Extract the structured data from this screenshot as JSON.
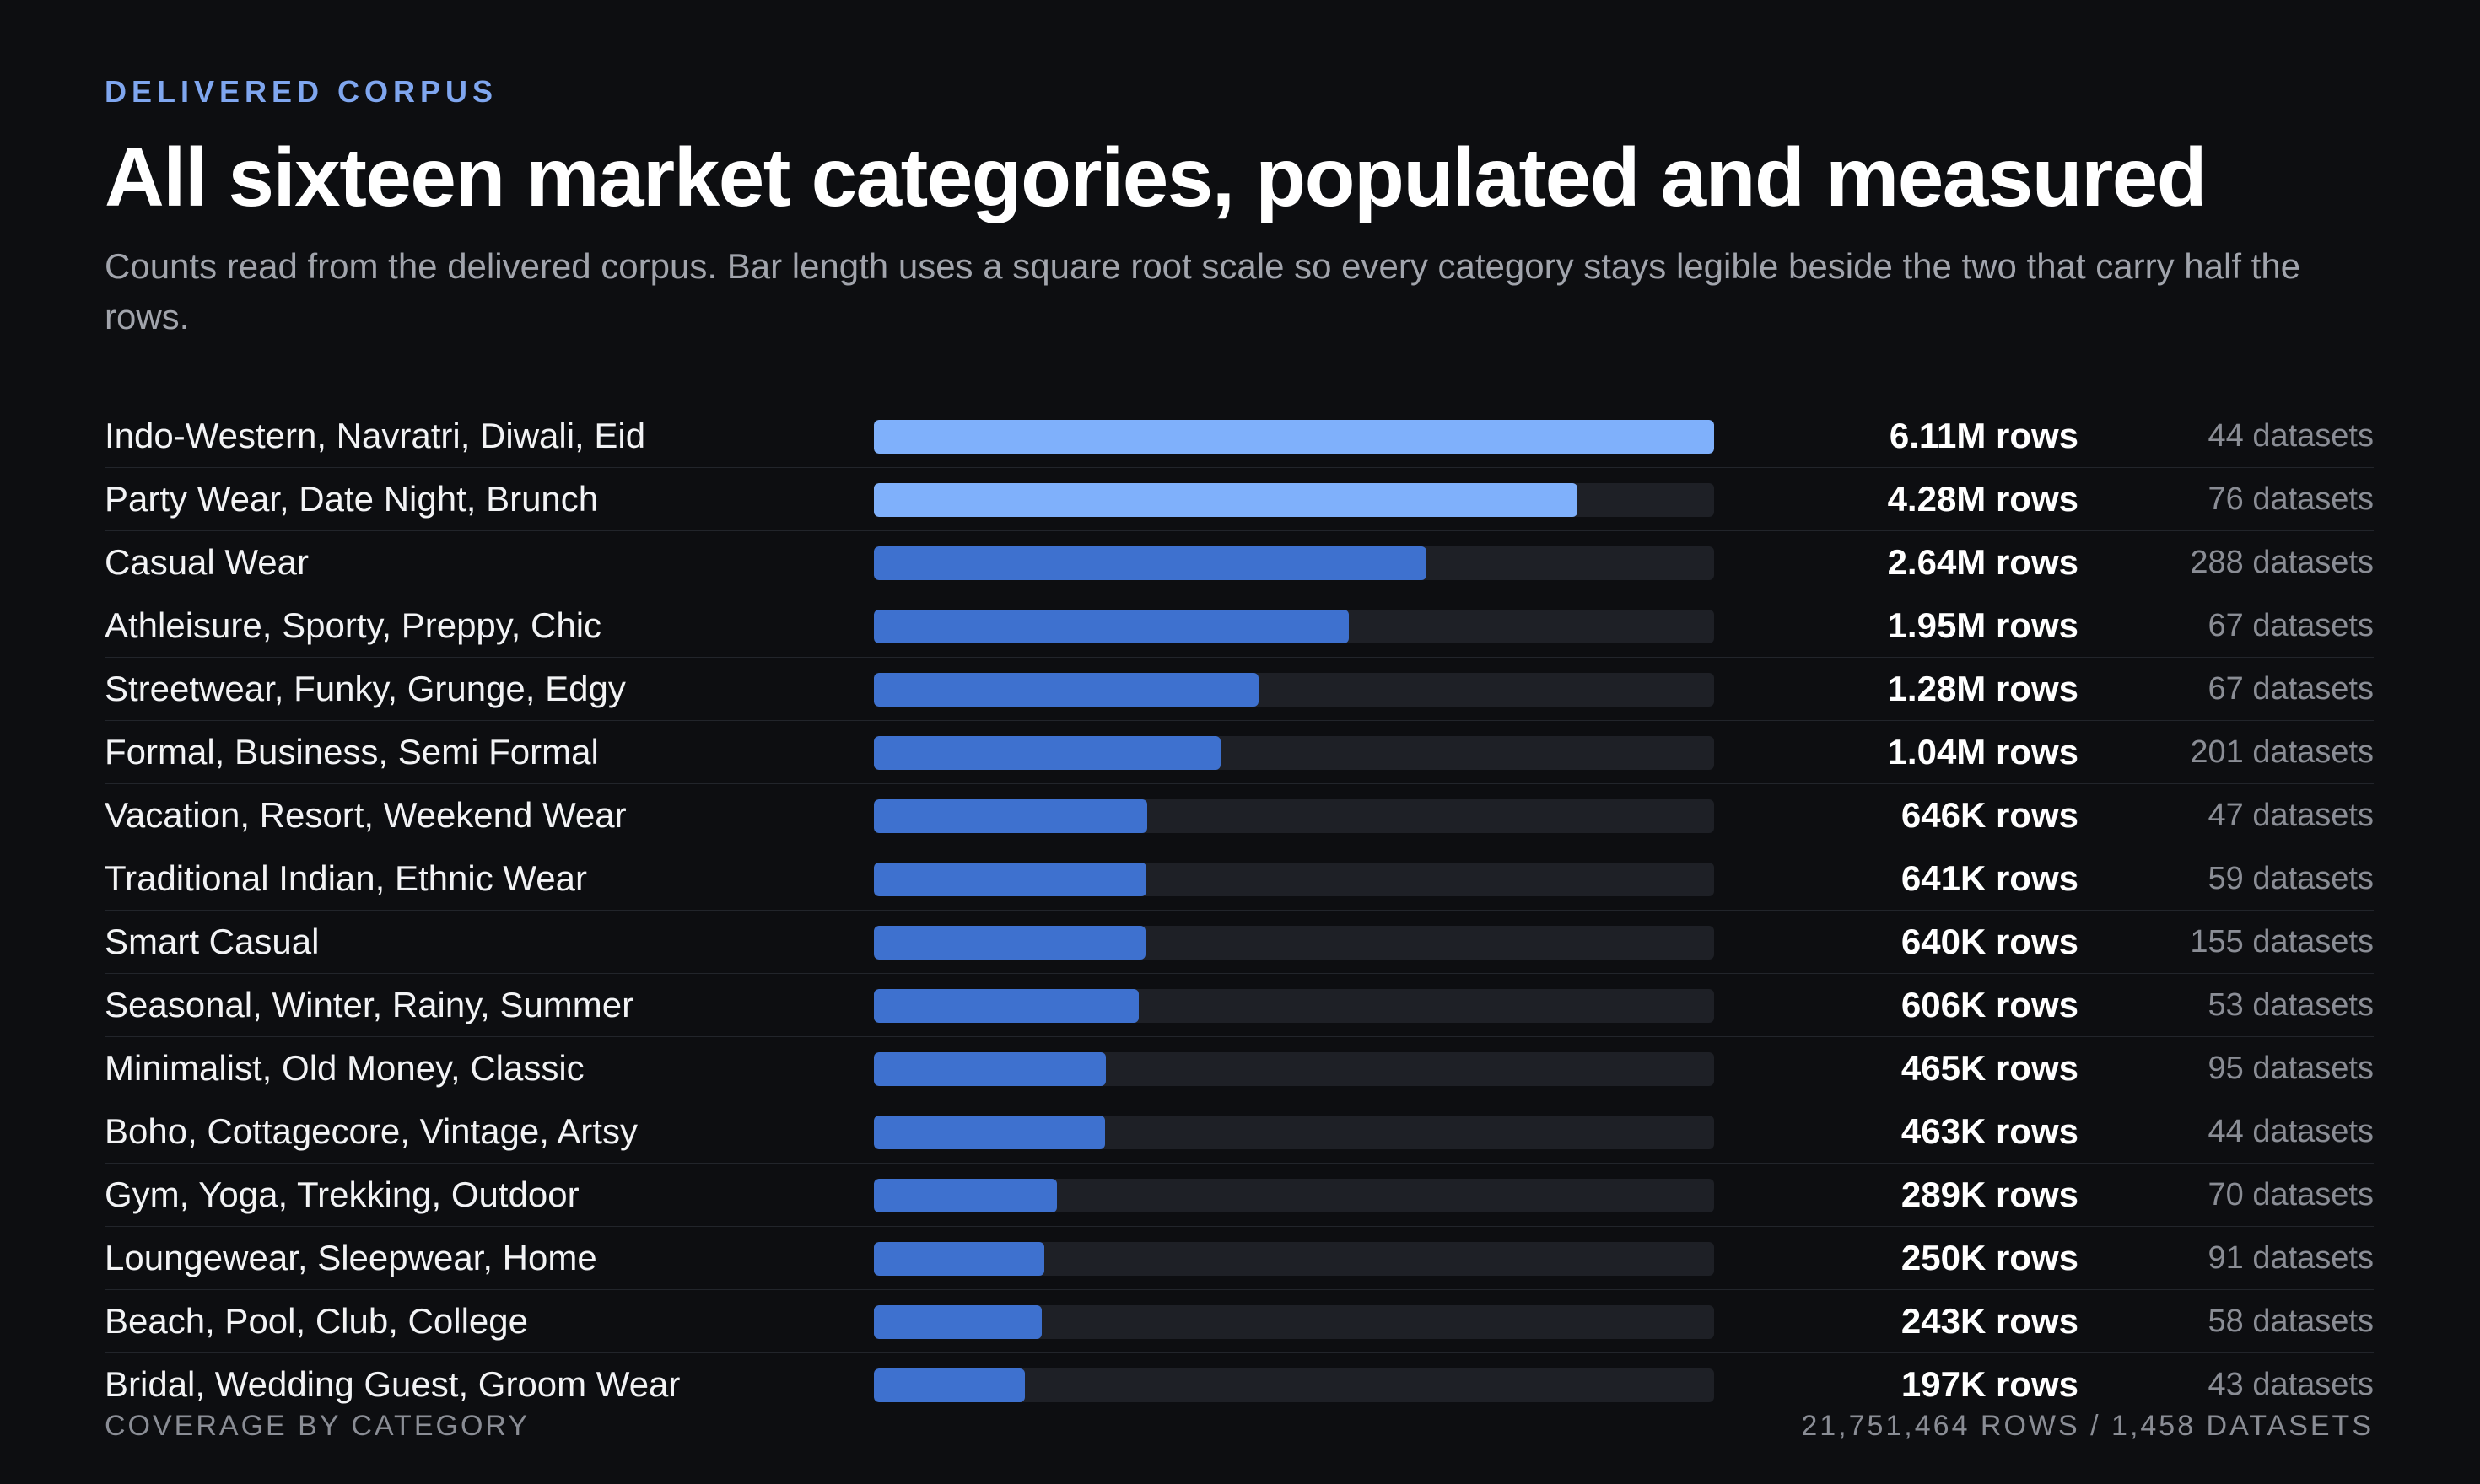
{
  "header": {
    "eyebrow": "DELIVERED CORPUS",
    "title": "All sixteen market categories, populated and measured",
    "subtitle": "Counts read from the delivered corpus. Bar length uses a square root scale so every category stays legible beside the two that carry half the rows."
  },
  "footer": {
    "left": "COVERAGE BY CATEGORY",
    "right": "21,751,464 ROWS / 1,458 DATASETS"
  },
  "colors": {
    "accent_light": "#7fb0fb",
    "accent": "#3e71cf",
    "track": "#1e2026",
    "background": "#0d0e11"
  },
  "chart_data": {
    "type": "bar",
    "orientation": "horizontal",
    "scale": "sqrt",
    "xlim": [
      0,
      6110000
    ],
    "grid": false,
    "categories": [
      "Indo-Western, Navratri, Diwali, Eid",
      "Party Wear, Date Night, Brunch",
      "Casual Wear",
      "Athleisure, Sporty, Preppy, Chic",
      "Streetwear, Funky, Grunge, Edgy",
      "Formal, Business, Semi Formal",
      "Vacation, Resort, Weekend Wear",
      "Traditional Indian, Ethnic Wear",
      "Smart Casual",
      "Seasonal, Winter, Rainy, Summer",
      "Minimalist, Old Money, Classic",
      "Boho, Cottagecore, Vintage, Artsy",
      "Gym, Yoga, Trekking, Outdoor",
      "Loungewear, Sleepwear, Home",
      "Beach, Pool, Club, College",
      "Bridal, Wedding Guest, Groom Wear"
    ],
    "values": [
      6110000,
      4280000,
      2640000,
      1950000,
      1280000,
      1040000,
      646000,
      641000,
      640000,
      606000,
      465000,
      463000,
      289000,
      250000,
      243000,
      197000
    ],
    "row_labels": [
      "6.11M rows",
      "4.28M rows",
      "2.64M rows",
      "1.95M rows",
      "1.28M rows",
      "1.04M rows",
      "646K rows",
      "641K rows",
      "640K rows",
      "606K rows",
      "465K rows",
      "463K rows",
      "289K rows",
      "250K rows",
      "243K rows",
      "197K rows"
    ],
    "dataset_labels": [
      "44 datasets",
      "76 datasets",
      "288 datasets",
      "67 datasets",
      "67 datasets",
      "201 datasets",
      "47 datasets",
      "59 datasets",
      "155 datasets",
      "53 datasets",
      "95 datasets",
      "44 datasets",
      "70 datasets",
      "91 datasets",
      "58 datasets",
      "43 datasets"
    ],
    "datasets": [
      44,
      76,
      288,
      67,
      67,
      201,
      47,
      59,
      155,
      53,
      95,
      44,
      70,
      91,
      58,
      43
    ],
    "highlighted_top": 2
  }
}
